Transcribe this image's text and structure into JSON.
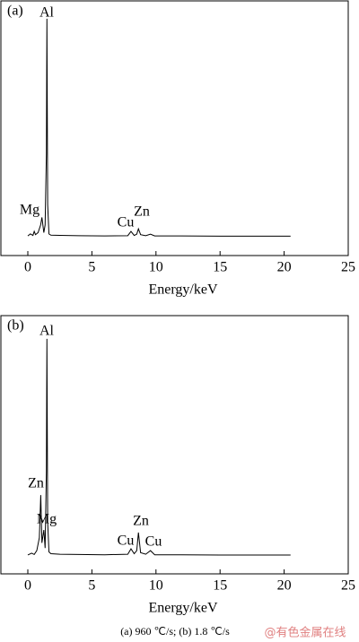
{
  "chart_data": [
    {
      "type": "line",
      "panel_label": "(a)",
      "x_label": "Energy/keV",
      "xlim": [
        -2.1,
        25
      ],
      "xticks": [
        0,
        5,
        10,
        15,
        20,
        25
      ],
      "ylim": [
        0,
        100
      ],
      "series": [
        {
          "name": "spectrum",
          "color": "#000000",
          "x": [
            0,
            0.2,
            0.4,
            0.5,
            0.6,
            0.8,
            1.0,
            1.1,
            1.25,
            1.35,
            1.45,
            1.49,
            1.55,
            1.65,
            1.8,
            2.5,
            4,
            6,
            7.8,
            8.05,
            8.3,
            8.5,
            8.63,
            8.8,
            9.2,
            9.57,
            9.9,
            12,
            15,
            18,
            20.5
          ],
          "values": [
            7.7,
            8.5,
            7.9,
            9.5,
            8.2,
            9,
            12,
            15,
            9,
            12,
            40,
            93,
            20,
            8.5,
            8,
            7.9,
            7.8,
            7.7,
            7.8,
            9.5,
            7.9,
            8.4,
            10.5,
            8.2,
            7.8,
            8.4,
            7.7,
            7.7,
            7.6,
            7.6,
            7.6
          ]
        }
      ],
      "annotations": [
        "Mg",
        "Al",
        "Cu",
        "Zn"
      ]
    },
    {
      "type": "line",
      "panel_label": "(b)",
      "x_label": "Energy/keV",
      "xlim": [
        -2.1,
        25
      ],
      "xticks": [
        0,
        5,
        10,
        15,
        20,
        25
      ],
      "ylim": [
        0,
        100
      ],
      "series": [
        {
          "name": "spectrum",
          "color": "#000000",
          "x": [
            0,
            0.3,
            0.5,
            0.7,
            0.9,
            1.01,
            1.1,
            1.25,
            1.35,
            1.45,
            1.49,
            1.55,
            1.65,
            1.8,
            2.5,
            4,
            6,
            7.8,
            8.05,
            8.3,
            8.5,
            8.63,
            8.8,
            9.2,
            9.57,
            9.9,
            12,
            15,
            18,
            20.5
          ],
          "values": [
            7.3,
            8,
            7.5,
            9,
            14,
            30.5,
            12,
            17,
            10,
            40,
            91,
            20,
            8.5,
            7.8,
            7.6,
            7.5,
            7.4,
            7.6,
            9.7,
            7.8,
            9,
            16,
            8.2,
            7.6,
            9,
            7.4,
            7.4,
            7.3,
            7.3,
            7.3
          ]
        }
      ],
      "annotations": [
        "Al",
        "Zn",
        "Mg",
        "Zn",
        "Cu",
        "Cu"
      ]
    }
  ],
  "caption": "(a) 960 ℃/s; (b) 1.8 ℃/s",
  "watermark": "@有色金属在线"
}
